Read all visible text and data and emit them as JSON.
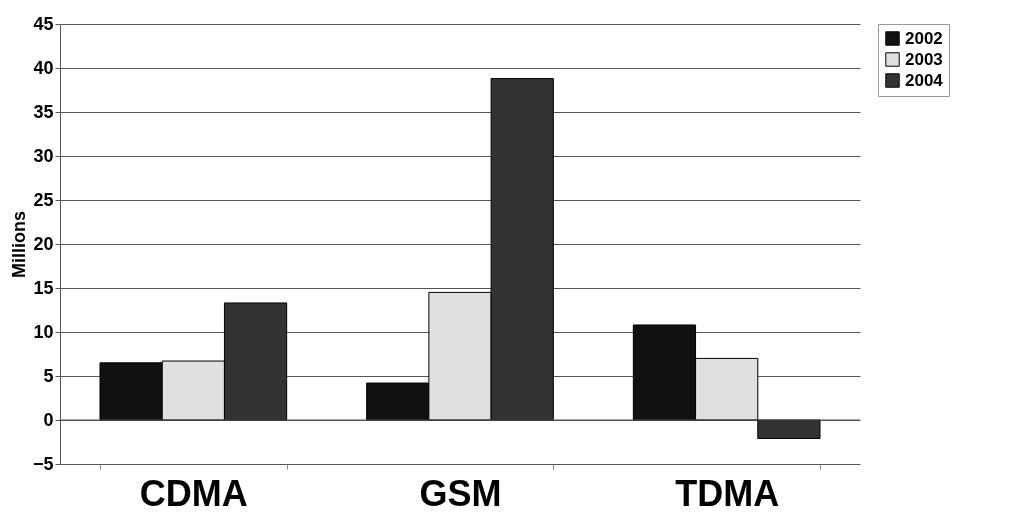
{
  "chart_data": {
    "type": "bar",
    "ylabel": "Millions",
    "categories": [
      "CDMA",
      "GSM",
      "TDMA"
    ],
    "series": [
      {
        "name": "2002",
        "color": "#111111",
        "values": [
          6.5,
          4.2,
          10.8
        ]
      },
      {
        "name": "2003",
        "color": "#e0e0e0",
        "values": [
          6.7,
          14.5,
          7.0
        ]
      },
      {
        "name": "2004",
        "color": "#333333",
        "values": [
          13.3,
          38.8,
          -2.1
        ]
      }
    ],
    "ylim": [
      -5,
      45
    ],
    "yticks": [
      -5,
      0,
      5,
      10,
      15,
      20,
      25,
      30,
      35,
      40,
      45
    ],
    "grid": "y",
    "legend": "right"
  }
}
